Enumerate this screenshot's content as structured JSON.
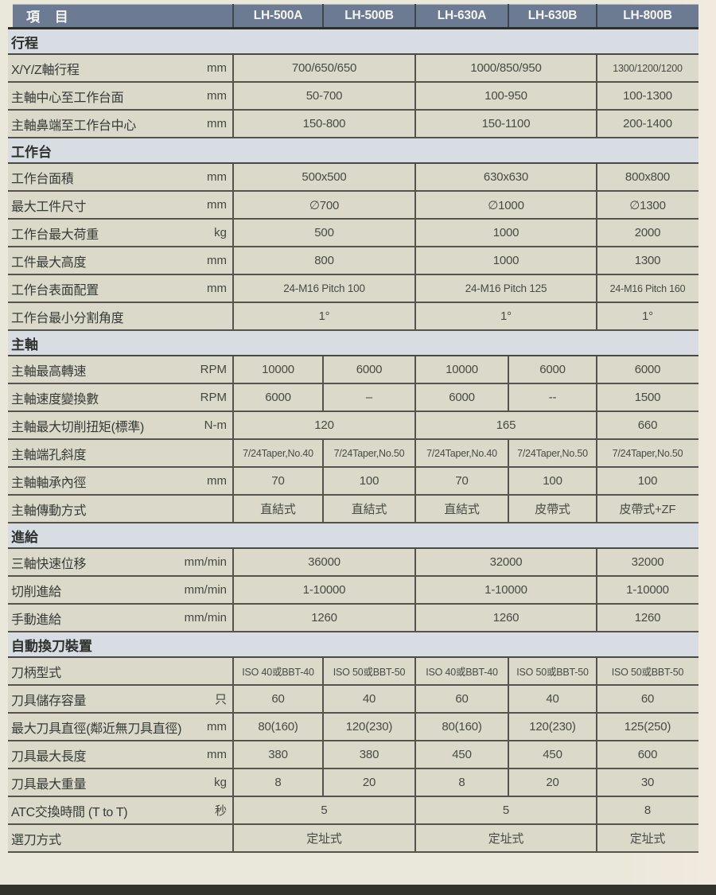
{
  "colors": {
    "page_bg": "#eae8da",
    "page_bg_right": "#f2eadf",
    "header_bg": "#6d7b92",
    "header_text": "#f4f4f0",
    "section_band_bg": "#d7dde3",
    "row_bg": "#dbd9ca",
    "bottom_bar": "#33332d"
  },
  "table": {
    "item_header": "項 目",
    "models": [
      "LH-500A",
      "LH-500B",
      "LH-630A",
      "LH-630B",
      "LH-800B"
    ],
    "sections": [
      {
        "title": "行程",
        "rows": [
          {
            "label": "X/Y/Z軸行程",
            "unit": "mm",
            "cells": [
              {
                "text": "700/650/650",
                "span": 2
              },
              {
                "text": "1000/850/950",
                "span": 2
              },
              {
                "text": "1300/1200/1200",
                "span": 1
              }
            ]
          },
          {
            "label": "主軸中心至工作台面",
            "unit": "mm",
            "cells": [
              {
                "text": "50-700",
                "span": 2
              },
              {
                "text": "100-950",
                "span": 2
              },
              {
                "text": "100-1300",
                "span": 1
              }
            ]
          },
          {
            "label": "主軸鼻端至工作台中心",
            "unit": "mm",
            "cells": [
              {
                "text": "150-800",
                "span": 2
              },
              {
                "text": "150-1100",
                "span": 2
              },
              {
                "text": "200-1400",
                "span": 1
              }
            ]
          }
        ]
      },
      {
        "title": "工作台",
        "rows": [
          {
            "label": "工作台面積",
            "unit": "mm",
            "cells": [
              {
                "text": "500x500",
                "span": 2
              },
              {
                "text": "630x630",
                "span": 2
              },
              {
                "text": "800x800",
                "span": 1
              }
            ]
          },
          {
            "label": "最大工件尺寸",
            "unit": "mm",
            "cells": [
              {
                "text": "∅700",
                "span": 2
              },
              {
                "text": "∅1000",
                "span": 2
              },
              {
                "text": "∅1300",
                "span": 1
              }
            ]
          },
          {
            "label": "工作台最大荷重",
            "unit": "kg",
            "cells": [
              {
                "text": "500",
                "span": 2
              },
              {
                "text": "1000",
                "span": 2
              },
              {
                "text": "2000",
                "span": 1
              }
            ]
          },
          {
            "label": "工件最大高度",
            "unit": "mm",
            "cells": [
              {
                "text": "800",
                "span": 2
              },
              {
                "text": "1000",
                "span": 2
              },
              {
                "text": "1300",
                "span": 1
              }
            ]
          },
          {
            "label": "工作台表面配置",
            "unit": "mm",
            "cells": [
              {
                "text": "24-M16 Pitch 100",
                "span": 2
              },
              {
                "text": "24-M16 Pitch 125",
                "span": 2
              },
              {
                "text": "24-M16 Pitch 160",
                "span": 1
              }
            ]
          },
          {
            "label": "工作台最小分割角度",
            "unit": "",
            "cells": [
              {
                "text": "1°",
                "span": 2
              },
              {
                "text": "1°",
                "span": 2
              },
              {
                "text": "1°",
                "span": 1
              }
            ]
          }
        ]
      },
      {
        "title": "主軸",
        "rows": [
          {
            "label": "主軸最高轉速",
            "unit": "RPM",
            "cells": [
              {
                "text": "10000",
                "span": 1
              },
              {
                "text": "6000",
                "span": 1
              },
              {
                "text": "10000",
                "span": 1
              },
              {
                "text": "6000",
                "span": 1
              },
              {
                "text": "6000",
                "span": 1
              }
            ]
          },
          {
            "label": "主軸速度變換數",
            "unit": "RPM",
            "cells": [
              {
                "text": "6000",
                "span": 1
              },
              {
                "text": "–",
                "span": 1
              },
              {
                "text": "6000",
                "span": 1
              },
              {
                "text": "--",
                "span": 1
              },
              {
                "text": "1500",
                "span": 1
              }
            ]
          },
          {
            "label": "主軸最大切削扭矩(標準)",
            "unit": "N-m",
            "cells": [
              {
                "text": "120",
                "span": 2
              },
              {
                "text": "165",
                "span": 2
              },
              {
                "text": "660",
                "span": 1
              }
            ]
          },
          {
            "label": "主軸端孔斜度",
            "unit": "",
            "cells": [
              {
                "text": "7/24Taper,No.40",
                "span": 1
              },
              {
                "text": "7/24Taper,No.50",
                "span": 1
              },
              {
                "text": "7/24Taper,No.40",
                "span": 1
              },
              {
                "text": "7/24Taper,No.50",
                "span": 1
              },
              {
                "text": "7/24Taper,No.50",
                "span": 1
              }
            ]
          },
          {
            "label": "主軸軸承內徑",
            "unit": "mm",
            "cells": [
              {
                "text": "70",
                "span": 1
              },
              {
                "text": "100",
                "span": 1
              },
              {
                "text": "70",
                "span": 1
              },
              {
                "text": "100",
                "span": 1
              },
              {
                "text": "100",
                "span": 1
              }
            ]
          },
          {
            "label": "主軸傳動方式",
            "unit": "",
            "cells": [
              {
                "text": "直結式",
                "span": 1
              },
              {
                "text": "直結式",
                "span": 1
              },
              {
                "text": "直結式",
                "span": 1
              },
              {
                "text": "皮帶式",
                "span": 1
              },
              {
                "text": "皮帶式+ZF",
                "span": 1
              }
            ]
          }
        ]
      },
      {
        "title": "進給",
        "rows": [
          {
            "label": "三軸快速位移",
            "unit": "mm/min",
            "cells": [
              {
                "text": "36000",
                "span": 2
              },
              {
                "text": "32000",
                "span": 2
              },
              {
                "text": "32000",
                "span": 1
              }
            ]
          },
          {
            "label": "切削進給",
            "unit": "mm/min",
            "cells": [
              {
                "text": "1-10000",
                "span": 2
              },
              {
                "text": "1-10000",
                "span": 2
              },
              {
                "text": "1-10000",
                "span": 1
              }
            ]
          },
          {
            "label": "手動進給",
            "unit": "mm/min",
            "cells": [
              {
                "text": "1260",
                "span": 2
              },
              {
                "text": "1260",
                "span": 2
              },
              {
                "text": "1260",
                "span": 1
              }
            ]
          }
        ]
      },
      {
        "title": "自動換刀裝置",
        "rows": [
          {
            "label": "刀柄型式",
            "unit": "",
            "cells": [
              {
                "text": "ISO 40或BBT-40",
                "span": 1
              },
              {
                "text": "ISO 50或BBT-50",
                "span": 1
              },
              {
                "text": "ISO 40或BBT-40",
                "span": 1
              },
              {
                "text": "ISO 50或BBT-50",
                "span": 1
              },
              {
                "text": "ISO 50或BBT-50",
                "span": 1
              }
            ]
          },
          {
            "label": "刀具儲存容量",
            "unit": "只",
            "cells": [
              {
                "text": "60",
                "span": 1
              },
              {
                "text": "40",
                "span": 1
              },
              {
                "text": "60",
                "span": 1
              },
              {
                "text": "40",
                "span": 1
              },
              {
                "text": "60",
                "span": 1
              }
            ]
          },
          {
            "label": "最大刀具直徑(鄰近無刀具直徑)",
            "unit": "mm",
            "cells": [
              {
                "text": "80(160)",
                "span": 1
              },
              {
                "text": "120(230)",
                "span": 1
              },
              {
                "text": "80(160)",
                "span": 1
              },
              {
                "text": "120(230)",
                "span": 1
              },
              {
                "text": "125(250)",
                "span": 1
              }
            ]
          },
          {
            "label": "刀具最大長度",
            "unit": "mm",
            "cells": [
              {
                "text": "380",
                "span": 1
              },
              {
                "text": "380",
                "span": 1
              },
              {
                "text": "450",
                "span": 1
              },
              {
                "text": "450",
                "span": 1
              },
              {
                "text": "600",
                "span": 1
              }
            ]
          },
          {
            "label": "刀具最大重量",
            "unit": "kg",
            "cells": [
              {
                "text": "8",
                "span": 1
              },
              {
                "text": "20",
                "span": 1
              },
              {
                "text": "8",
                "span": 1
              },
              {
                "text": "20",
                "span": 1
              },
              {
                "text": "30",
                "span": 1
              }
            ]
          },
          {
            "label": "ATC交換時間 (T to T)",
            "unit": "秒",
            "cells": [
              {
                "text": "5",
                "span": 2
              },
              {
                "text": "5",
                "span": 2
              },
              {
                "text": "8",
                "span": 1
              }
            ]
          },
          {
            "label": "選刀方式",
            "unit": "",
            "cells": [
              {
                "text": "定址式",
                "span": 2
              },
              {
                "text": "定址式",
                "span": 2
              },
              {
                "text": "定址式",
                "span": 1
              }
            ]
          }
        ]
      }
    ]
  }
}
